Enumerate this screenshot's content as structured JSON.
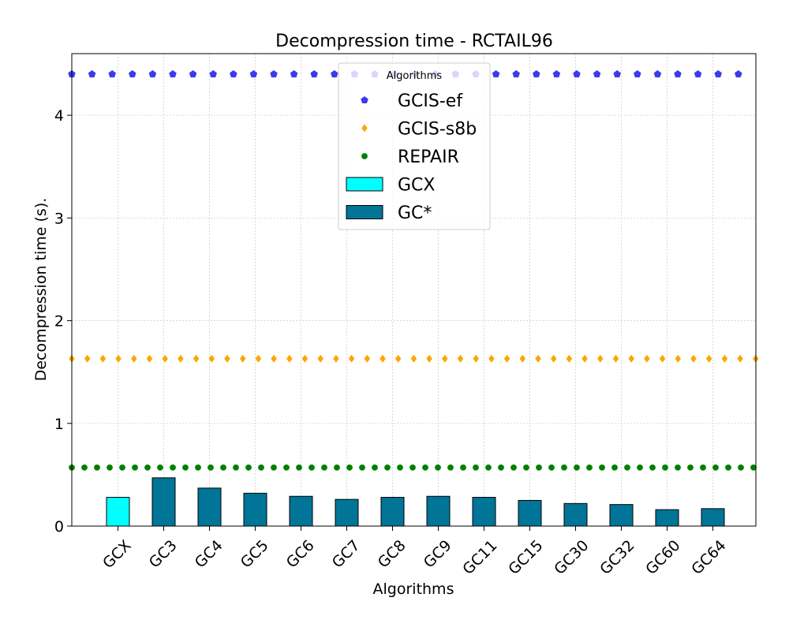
{
  "chart_data": {
    "type": "bar",
    "title": "Decompression time -  RCTAIL96",
    "xlabel": "Algorithms",
    "ylabel": "Decompression time (s).",
    "ylim": [
      0,
      4.6
    ],
    "yticks": [
      0,
      1,
      2,
      3,
      4
    ],
    "grid": true,
    "categories": [
      "GCX",
      "GC3",
      "GC4",
      "GC5",
      "GC6",
      "GC7",
      "GC8",
      "GC9",
      "GC11",
      "GC15",
      "GC30",
      "GC32",
      "GC60",
      "GC64"
    ],
    "bar_series": [
      {
        "name": "GCX",
        "color": "#00ffff",
        "values": [
          0.28,
          null,
          null,
          null,
          null,
          null,
          null,
          null,
          null,
          null,
          null,
          null,
          null,
          null
        ]
      },
      {
        "name": "GC*",
        "color": "#007597",
        "values": [
          null,
          0.47,
          0.37,
          0.32,
          0.29,
          0.26,
          0.28,
          0.29,
          0.28,
          0.25,
          0.22,
          0.21,
          0.16,
          0.17
        ]
      }
    ],
    "reference_lines": [
      {
        "name": "GCIS-ef",
        "value": 4.4,
        "color": "#3a3aee",
        "marker": "pentagon"
      },
      {
        "name": "GCIS-s8b",
        "value": 1.63,
        "color": "#ffa500",
        "marker": "diamond"
      },
      {
        "name": "REPAIR",
        "value": 0.57,
        "color": "#008000",
        "marker": "circle"
      }
    ],
    "legend": {
      "title": "Algorithms",
      "position": "top-center",
      "entries": [
        "GCIS-ef",
        "GCIS-s8b",
        "REPAIR",
        "GCX",
        "GC*"
      ]
    }
  }
}
